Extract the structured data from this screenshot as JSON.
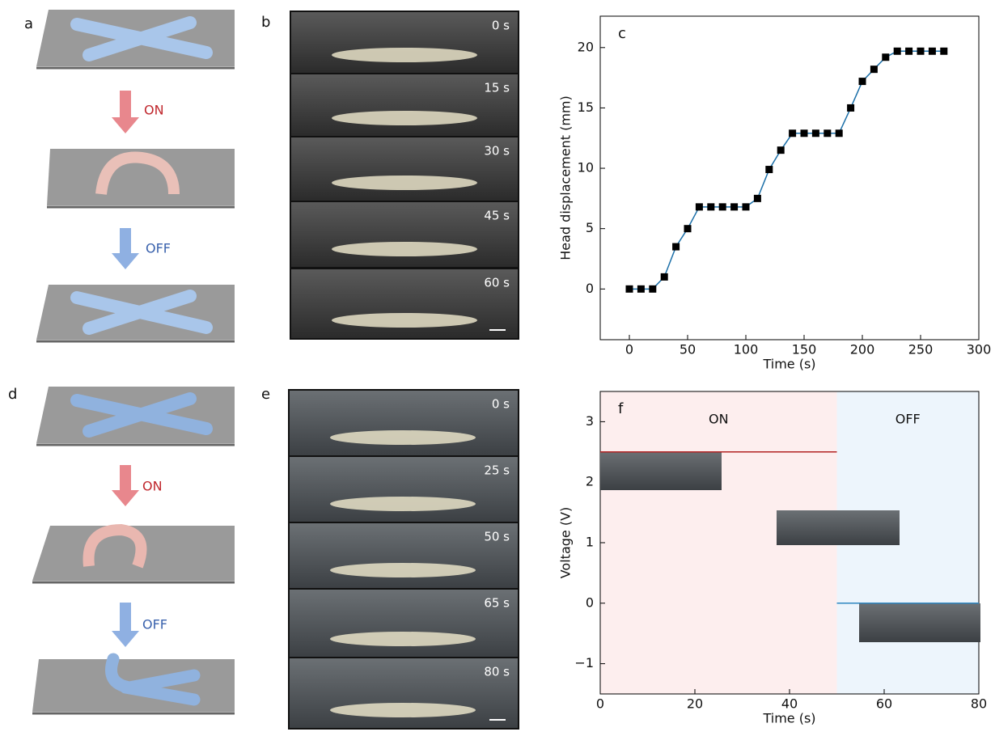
{
  "panels": {
    "a": {
      "label": "a",
      "on": "ON",
      "off": "OFF"
    },
    "b": {
      "label": "b",
      "times": [
        "0 s",
        "15 s",
        "30 s",
        "45 s",
        "60 s"
      ]
    },
    "d": {
      "label": "d",
      "on": "ON",
      "off": "OFF"
    },
    "e": {
      "label": "e",
      "times": [
        "0 s",
        "25 s",
        "50 s",
        "65 s",
        "80 s"
      ]
    }
  },
  "chart_data": [
    {
      "type": "line",
      "label": "c",
      "xlabel": "Time (s)",
      "ylabel": "Head displacement (mm)",
      "x": [
        0,
        10,
        20,
        30,
        40,
        50,
        60,
        70,
        80,
        90,
        100,
        110,
        120,
        130,
        140,
        150,
        160,
        170,
        180,
        190,
        200,
        210,
        220,
        230,
        240,
        250,
        260,
        270
      ],
      "series": [
        {
          "color": "#1b6fa8",
          "marker_color": "#000000",
          "values": [
            0,
            0,
            0,
            1,
            3.5,
            5,
            6.8,
            6.8,
            6.8,
            6.8,
            6.8,
            7.5,
            9.9,
            11.5,
            12.9,
            12.9,
            12.9,
            12.9,
            12.9,
            15,
            17.2,
            18.2,
            19.2,
            19.7,
            19.7,
            19.7,
            19.7,
            19.7
          ]
        }
      ],
      "xlim": [
        -25,
        300
      ],
      "ylim": [
        -4.2,
        22.6
      ],
      "xticks": [
        0,
        50,
        100,
        150,
        200,
        250,
        300
      ],
      "yticks": [
        0,
        5,
        10,
        15,
        20
      ]
    },
    {
      "type": "line",
      "label": "f",
      "xlabel": "Time (s)",
      "ylabel": "Voltage (V)",
      "x": [
        0,
        50,
        50,
        80
      ],
      "series": [
        {
          "color": "#b22222",
          "values": [
            2.5,
            2.5,
            null,
            null
          ]
        },
        {
          "color": "#2e86c1",
          "values": [
            null,
            null,
            0,
            0
          ]
        }
      ],
      "regions": [
        {
          "label": "ON",
          "x": [
            0,
            50
          ],
          "color": "#fdeeee"
        },
        {
          "label": "OFF",
          "x": [
            50,
            80
          ],
          "color": "#edf5fc"
        }
      ],
      "xlim": [
        0,
        80
      ],
      "ylim": [
        -1.5,
        3.5
      ],
      "xticks": [
        0,
        20,
        40,
        60,
        80
      ],
      "yticks": [
        {
          "value": -1,
          "label": "−1"
        },
        0,
        1,
        2,
        3
      ]
    }
  ]
}
